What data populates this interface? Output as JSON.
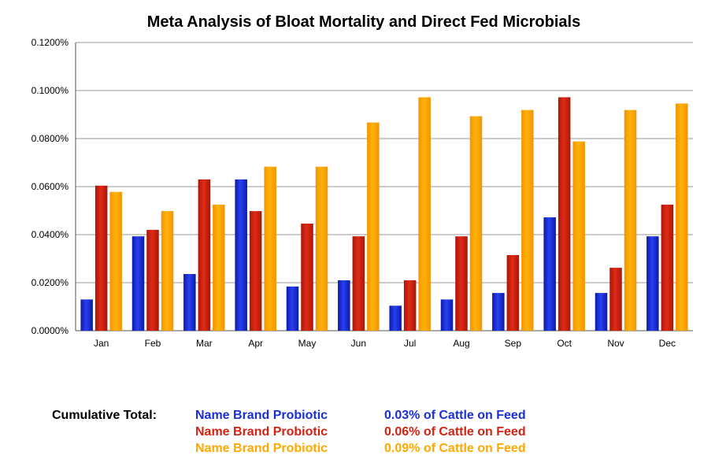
{
  "chart_data": {
    "type": "bar",
    "title": "Meta Analysis of Bloat Mortality and Direct Fed Microbials",
    "categories": [
      "Jan",
      "Feb",
      "Mar",
      "Apr",
      "May",
      "Jun",
      "Jul",
      "Aug",
      "Sep",
      "Oct",
      "Nov",
      "Dec"
    ],
    "series": [
      {
        "name": "Name Brand Probiotic",
        "color": "#1a2fd6",
        "values": [
          0.013,
          0.0393,
          0.0236,
          0.063,
          0.0184,
          0.021,
          0.0104,
          0.013,
          0.0157,
          0.0472,
          0.0157,
          0.0393
        ]
      },
      {
        "name": "Name Brand Probiotic",
        "color": "#d22312",
        "values": [
          0.0604,
          0.042,
          0.063,
          0.0498,
          0.0446,
          0.0393,
          0.021,
          0.0393,
          0.0315,
          0.0972,
          0.0262,
          0.0525
        ]
      },
      {
        "name": "Name Brand Probiotic",
        "color": "#ffa800",
        "values": [
          0.0578,
          0.0498,
          0.0525,
          0.0683,
          0.0683,
          0.0867,
          0.0972,
          0.0893,
          0.0919,
          0.0788,
          0.0919,
          0.0946
        ]
      }
    ],
    "ylim": [
      0,
      0.12
    ],
    "yticks": [
      "0.0000%",
      "0.0200%",
      "0.0400%",
      "0.0600%",
      "0.0800%",
      "0.1000%",
      "0.1200%"
    ],
    "ytick_values": [
      0,
      0.02,
      0.04,
      0.06,
      0.08,
      0.1,
      0.12
    ],
    "xlabel": "",
    "ylabel": "",
    "grid": true
  },
  "legend": {
    "cumulative_label": "Cumulative Total:",
    "rows": [
      {
        "name": "Name Brand Probiotic",
        "pct": "0.03% of Cattle on Feed",
        "color": "#1a2fd6"
      },
      {
        "name": "Name Brand Probiotic",
        "pct": "0.06% of Cattle on Feed",
        "color": "#d22312"
      },
      {
        "name": "Name Brand Probiotic",
        "pct": "0.09% of Cattle on Feed",
        "color": "#ffa800"
      }
    ]
  }
}
